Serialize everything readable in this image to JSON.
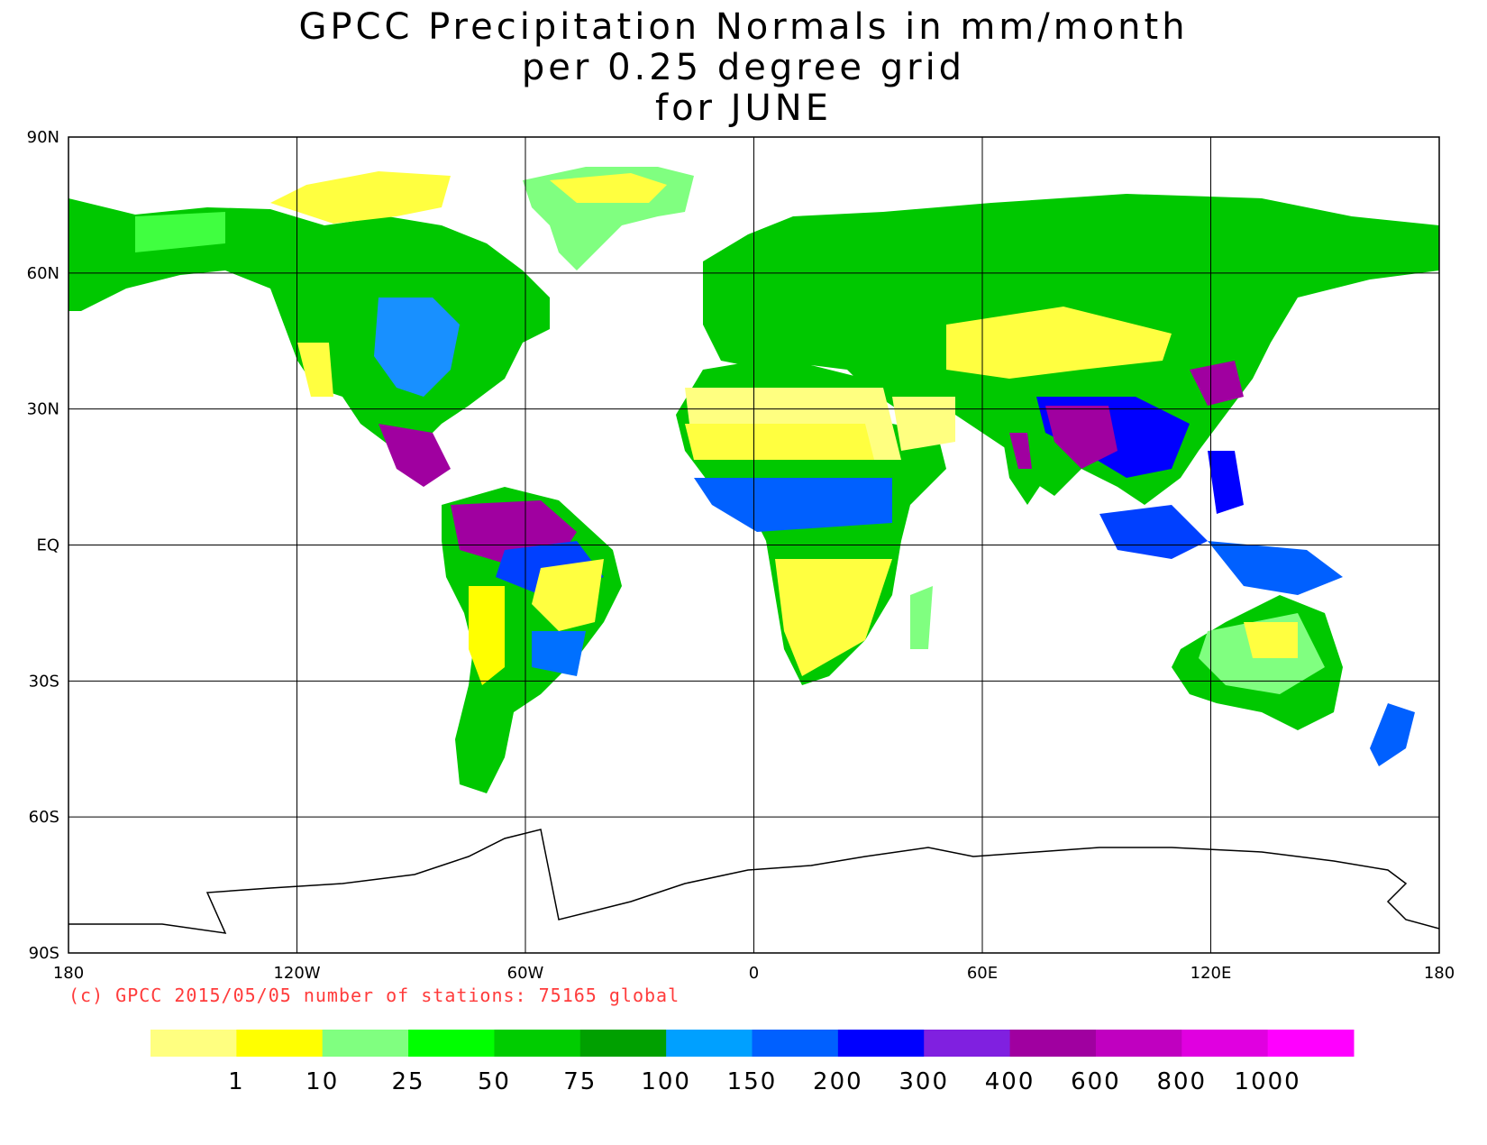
{
  "title": {
    "line1": "GPCC Precipitation Normals in mm/month",
    "line2": "per 0.25 degree grid",
    "line3": "for JUNE"
  },
  "axes": {
    "lat_ticks": [
      "90N",
      "60N",
      "30N",
      "EQ",
      "30S",
      "60S",
      "90S"
    ],
    "lon_ticks": [
      "180",
      "120W",
      "60W",
      "0",
      "60E",
      "120E",
      "180"
    ]
  },
  "copyright": "(c) GPCC 2015/05/05 number of stations: 75165 global",
  "legend": {
    "colors": [
      "#ffff80",
      "#ffff00",
      "#80ff80",
      "#00ff00",
      "#00cc00",
      "#00a000",
      "#00a0ff",
      "#0060ff",
      "#0000ff",
      "#8020e0",
      "#a000a0",
      "#c000c0",
      "#e000e0",
      "#ff00ff"
    ],
    "labels": [
      "1",
      "10",
      "25",
      "50",
      "75",
      "100",
      "150",
      "200",
      "300",
      "400",
      "600",
      "800",
      "1000"
    ]
  }
}
